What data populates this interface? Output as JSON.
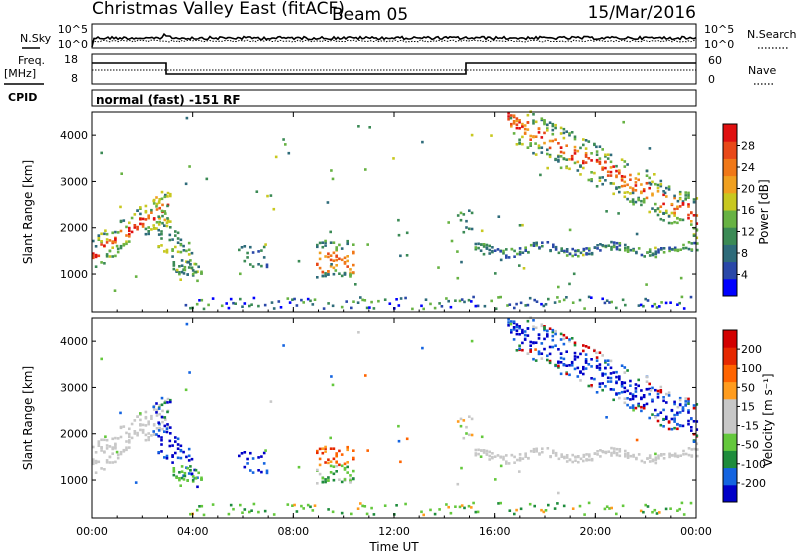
{
  "header": {
    "title": "Christmas Valley East (fitACF)",
    "beam": "Beam 05",
    "date": "15/Mar/2016"
  },
  "noise_panel": {
    "left_label": "N.Sky",
    "right_label": "N.Search",
    "left_ticks": [
      "10^5",
      "10^0"
    ],
    "right_ticks": [
      "10^5",
      "10^0"
    ]
  },
  "freq_panel": {
    "left_label_line1": "Freq.",
    "left_label_line2": "[MHz]",
    "right_label": "Nave",
    "left_ticks": [
      "18",
      "8"
    ],
    "right_ticks": [
      "60",
      "0"
    ]
  },
  "cpid_panel": {
    "label": "CPID",
    "text": "normal (fast) -151 RF"
  },
  "colors": {
    "power_scale": [
      "#0000ff",
      "#2a48a8",
      "#2e6b7a",
      "#3b8a55",
      "#67b243",
      "#c8c820",
      "#f0a020",
      "#f07818",
      "#e84818",
      "#e01010"
    ],
    "velocity_scale": [
      "#0000c8",
      "#1464e0",
      "#1e8c3c",
      "#64c83c",
      "#c8c8c8",
      "#c8c8c8",
      "#ff9c1e",
      "#ff6400",
      "#e62800",
      "#d20000"
    ],
    "ground_scatter": "#c8c8c8"
  },
  "chart_data": [
    {
      "type": "heatmap",
      "name": "power",
      "xlabel": "",
      "ylabel": "Slant Range [km]",
      "x_ticks": [
        "00:00",
        "04:00",
        "08:00",
        "12:00",
        "16:00",
        "20:00",
        "00:00"
      ],
      "y_ticks": [
        "1000",
        "2000",
        "3000",
        "4000"
      ],
      "ylim": [
        180,
        4500
      ],
      "xlim_hours": [
        0,
        24
      ],
      "colorbar": {
        "label": "Power [dB]",
        "ticks": [
          "4",
          "8",
          "12",
          "16",
          "20",
          "24",
          "28"
        ],
        "range": [
          0,
          30
        ]
      }
    },
    {
      "type": "heatmap",
      "name": "velocity",
      "xlabel": "Time UT",
      "ylabel": "Slant Range [km]",
      "x_ticks": [
        "00:00",
        "04:00",
        "08:00",
        "12:00",
        "16:00",
        "20:00",
        "00:00"
      ],
      "y_ticks": [
        "1000",
        "2000",
        "3000",
        "4000"
      ],
      "ylim": [
        180,
        4500
      ],
      "xlim_hours": [
        0,
        24
      ],
      "colorbar": {
        "label": "Velocity [m s⁻¹]",
        "ticks": [
          "200",
          "100",
          "50",
          "15",
          "-15",
          "-50",
          "-100",
          "-200"
        ]
      }
    }
  ]
}
